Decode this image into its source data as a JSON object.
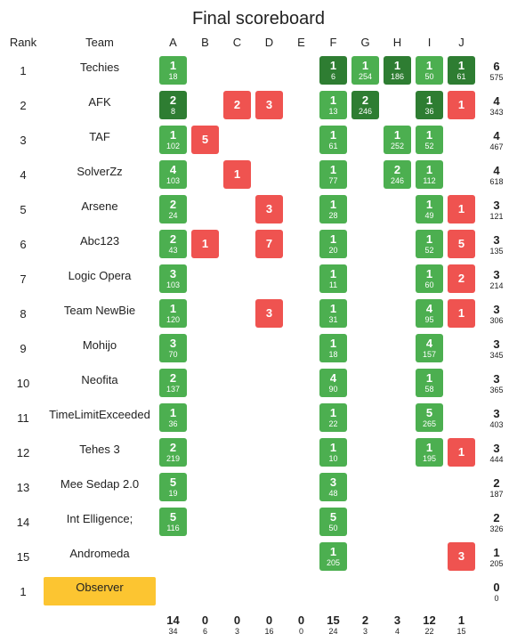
{
  "title": "Final scoreboard",
  "headers": {
    "rank": "Rank",
    "team": "Team",
    "problems": [
      "A",
      "B",
      "C",
      "D",
      "E",
      "F",
      "G",
      "H",
      "I",
      "J"
    ]
  },
  "colors": {
    "solved": "#4caf50",
    "first_solve": "#2e7d32",
    "failed": "#ef5350",
    "observer": "#fcc531"
  },
  "rows": [
    {
      "rank": "1",
      "team": "Techies",
      "solved": "6",
      "penalty": "575",
      "cells": [
        {
          "col": 0,
          "state": "solved",
          "tries": "1",
          "time": "18"
        },
        {
          "col": 5,
          "state": "first",
          "tries": "1",
          "time": "6"
        },
        {
          "col": 6,
          "state": "solved",
          "tries": "1",
          "time": "254"
        },
        {
          "col": 7,
          "state": "first",
          "tries": "1",
          "time": "186"
        },
        {
          "col": 8,
          "state": "solved",
          "tries": "1",
          "time": "50"
        },
        {
          "col": 9,
          "state": "first",
          "tries": "1",
          "time": "61"
        }
      ]
    },
    {
      "rank": "2",
      "team": "AFK",
      "solved": "4",
      "penalty": "343",
      "cells": [
        {
          "col": 0,
          "state": "first",
          "tries": "2",
          "time": "8"
        },
        {
          "col": 2,
          "state": "failed",
          "tries": "2",
          "time": ""
        },
        {
          "col": 3,
          "state": "failed",
          "tries": "3",
          "time": ""
        },
        {
          "col": 5,
          "state": "solved",
          "tries": "1",
          "time": "13"
        },
        {
          "col": 6,
          "state": "first",
          "tries": "2",
          "time": "246"
        },
        {
          "col": 8,
          "state": "first",
          "tries": "1",
          "time": "36"
        },
        {
          "col": 9,
          "state": "failed",
          "tries": "1",
          "time": ""
        }
      ]
    },
    {
      "rank": "3",
      "team": "TAF",
      "solved": "4",
      "penalty": "467",
      "cells": [
        {
          "col": 0,
          "state": "solved",
          "tries": "1",
          "time": "102"
        },
        {
          "col": 1,
          "state": "failed",
          "tries": "5",
          "time": ""
        },
        {
          "col": 5,
          "state": "solved",
          "tries": "1",
          "time": "61"
        },
        {
          "col": 7,
          "state": "solved",
          "tries": "1",
          "time": "252"
        },
        {
          "col": 8,
          "state": "solved",
          "tries": "1",
          "time": "52"
        }
      ]
    },
    {
      "rank": "4",
      "team": "SolverZz",
      "solved": "4",
      "penalty": "618",
      "cells": [
        {
          "col": 0,
          "state": "solved",
          "tries": "4",
          "time": "103"
        },
        {
          "col": 2,
          "state": "failed",
          "tries": "1",
          "time": ""
        },
        {
          "col": 5,
          "state": "solved",
          "tries": "1",
          "time": "77"
        },
        {
          "col": 7,
          "state": "solved",
          "tries": "2",
          "time": "246"
        },
        {
          "col": 8,
          "state": "solved",
          "tries": "1",
          "time": "112"
        }
      ]
    },
    {
      "rank": "5",
      "team": "Arsene",
      "solved": "3",
      "penalty": "121",
      "cells": [
        {
          "col": 0,
          "state": "solved",
          "tries": "2",
          "time": "24"
        },
        {
          "col": 3,
          "state": "failed",
          "tries": "3",
          "time": ""
        },
        {
          "col": 5,
          "state": "solved",
          "tries": "1",
          "time": "28"
        },
        {
          "col": 8,
          "state": "solved",
          "tries": "1",
          "time": "49"
        },
        {
          "col": 9,
          "state": "failed",
          "tries": "1",
          "time": ""
        }
      ]
    },
    {
      "rank": "6",
      "team": "Abc123",
      "solved": "3",
      "penalty": "135",
      "cells": [
        {
          "col": 0,
          "state": "solved",
          "tries": "2",
          "time": "43"
        },
        {
          "col": 1,
          "state": "failed",
          "tries": "1",
          "time": ""
        },
        {
          "col": 3,
          "state": "failed",
          "tries": "7",
          "time": ""
        },
        {
          "col": 5,
          "state": "solved",
          "tries": "1",
          "time": "20"
        },
        {
          "col": 8,
          "state": "solved",
          "tries": "1",
          "time": "52"
        },
        {
          "col": 9,
          "state": "failed",
          "tries": "5",
          "time": ""
        }
      ]
    },
    {
      "rank": "7",
      "team": "Logic Opera",
      "solved": "3",
      "penalty": "214",
      "cells": [
        {
          "col": 0,
          "state": "solved",
          "tries": "3",
          "time": "103"
        },
        {
          "col": 5,
          "state": "solved",
          "tries": "1",
          "time": "11"
        },
        {
          "col": 8,
          "state": "solved",
          "tries": "1",
          "time": "60"
        },
        {
          "col": 9,
          "state": "failed",
          "tries": "2",
          "time": ""
        }
      ]
    },
    {
      "rank": "8",
      "team": "Team NewBie",
      "solved": "3",
      "penalty": "306",
      "cells": [
        {
          "col": 0,
          "state": "solved",
          "tries": "1",
          "time": "120"
        },
        {
          "col": 3,
          "state": "failed",
          "tries": "3",
          "time": ""
        },
        {
          "col": 5,
          "state": "solved",
          "tries": "1",
          "time": "31"
        },
        {
          "col": 8,
          "state": "solved",
          "tries": "4",
          "time": "95"
        },
        {
          "col": 9,
          "state": "failed",
          "tries": "1",
          "time": ""
        }
      ]
    },
    {
      "rank": "9",
      "team": "Mohijo",
      "solved": "3",
      "penalty": "345",
      "cells": [
        {
          "col": 0,
          "state": "solved",
          "tries": "3",
          "time": "70"
        },
        {
          "col": 5,
          "state": "solved",
          "tries": "1",
          "time": "18"
        },
        {
          "col": 8,
          "state": "solved",
          "tries": "4",
          "time": "157"
        }
      ]
    },
    {
      "rank": "10",
      "team": "Neofita",
      "solved": "3",
      "penalty": "365",
      "cells": [
        {
          "col": 0,
          "state": "solved",
          "tries": "2",
          "time": "137"
        },
        {
          "col": 5,
          "state": "solved",
          "tries": "4",
          "time": "90"
        },
        {
          "col": 8,
          "state": "solved",
          "tries": "1",
          "time": "58"
        }
      ]
    },
    {
      "rank": "11",
      "team": "TimeLimitExceeded",
      "solved": "3",
      "penalty": "403",
      "cells": [
        {
          "col": 0,
          "state": "solved",
          "tries": "1",
          "time": "36"
        },
        {
          "col": 5,
          "state": "solved",
          "tries": "1",
          "time": "22"
        },
        {
          "col": 8,
          "state": "solved",
          "tries": "5",
          "time": "265"
        }
      ]
    },
    {
      "rank": "12",
      "team": "Tehes 3",
      "solved": "3",
      "penalty": "444",
      "cells": [
        {
          "col": 0,
          "state": "solved",
          "tries": "2",
          "time": "219"
        },
        {
          "col": 5,
          "state": "solved",
          "tries": "1",
          "time": "10"
        },
        {
          "col": 8,
          "state": "solved",
          "tries": "1",
          "time": "195"
        },
        {
          "col": 9,
          "state": "failed",
          "tries": "1",
          "time": ""
        }
      ]
    },
    {
      "rank": "13",
      "team": "Mee Sedap 2.0",
      "solved": "2",
      "penalty": "187",
      "cells": [
        {
          "col": 0,
          "state": "solved",
          "tries": "5",
          "time": "19"
        },
        {
          "col": 5,
          "state": "solved",
          "tries": "3",
          "time": "48"
        }
      ]
    },
    {
      "rank": "14",
      "team": "Int Elligence;",
      "solved": "2",
      "penalty": "326",
      "cells": [
        {
          "col": 0,
          "state": "solved",
          "tries": "5",
          "time": "116"
        },
        {
          "col": 5,
          "state": "solved",
          "tries": "5",
          "time": "50"
        }
      ]
    },
    {
      "rank": "15",
      "team": "Andromeda",
      "solved": "1",
      "penalty": "205",
      "cells": [
        {
          "col": 5,
          "state": "solved",
          "tries": "1",
          "time": "205"
        },
        {
          "col": 9,
          "state": "failed",
          "tries": "3",
          "time": ""
        }
      ]
    }
  ],
  "observer": {
    "rank": "1",
    "team": "Observer",
    "solved": "0",
    "penalty": "0"
  },
  "totals": [
    {
      "solved": "14",
      "tries": "34"
    },
    {
      "solved": "0",
      "tries": "6"
    },
    {
      "solved": "0",
      "tries": "3"
    },
    {
      "solved": "0",
      "tries": "16"
    },
    {
      "solved": "0",
      "tries": "0"
    },
    {
      "solved": "15",
      "tries": "24"
    },
    {
      "solved": "2",
      "tries": "3"
    },
    {
      "solved": "3",
      "tries": "4"
    },
    {
      "solved": "12",
      "tries": "22"
    },
    {
      "solved": "1",
      "tries": "15"
    }
  ]
}
